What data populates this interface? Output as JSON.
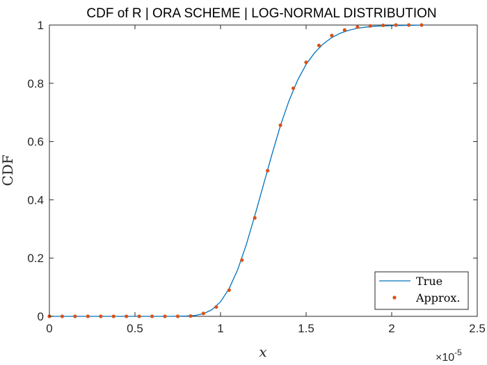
{
  "chart_data": {
    "type": "line",
    "title": "CDF of R | ORA SCHEME | LOG-NORMAL DISTRIBUTION",
    "xlabel": "x",
    "ylabel": "CDF",
    "x_exponent_label": "×10",
    "x_exponent_power": "-5",
    "xlim": [
      0,
      2.5
    ],
    "ylim": [
      0,
      1
    ],
    "x_ticks": [
      0,
      0.5,
      1,
      1.5,
      2,
      2.5
    ],
    "x_tick_labels": [
      "0",
      "0.5",
      "1",
      "1.5",
      "2",
      "2.5"
    ],
    "y_ticks": [
      0,
      0.2,
      0.4,
      0.6,
      0.8,
      1
    ],
    "y_tick_labels": [
      "0",
      "0.2",
      "0.4",
      "0.6",
      "0.8",
      "1"
    ],
    "grid": false,
    "legend": {
      "placement": "bottom-right",
      "entries": [
        "True",
        "Approx."
      ]
    },
    "series": [
      {
        "name": "True",
        "style": "line",
        "color": "#0072BD",
        "x": [
          0,
          0.7,
          0.8,
          0.85,
          0.9,
          0.95,
          1.0,
          1.05,
          1.1,
          1.15,
          1.2,
          1.25,
          1.3,
          1.35,
          1.4,
          1.45,
          1.5,
          1.55,
          1.6,
          1.65,
          1.7,
          1.75,
          1.8,
          1.85,
          1.9,
          2.0,
          2.1,
          2.2
        ],
        "y": [
          0,
          0,
          0.001,
          0.003,
          0.009,
          0.023,
          0.05,
          0.095,
          0.16,
          0.245,
          0.345,
          0.45,
          0.555,
          0.655,
          0.74,
          0.81,
          0.865,
          0.905,
          0.935,
          0.957,
          0.972,
          0.982,
          0.989,
          0.993,
          0.996,
          0.998,
          0.999,
          1
        ]
      },
      {
        "name": "Approx.",
        "style": "scatter",
        "color": "#D95319",
        "x": [
          0,
          0.075,
          0.15,
          0.225,
          0.3,
          0.375,
          0.45,
          0.525,
          0.6,
          0.675,
          0.75,
          0.825,
          0.9,
          0.975,
          1.05,
          1.125,
          1.2,
          1.275,
          1.35,
          1.425,
          1.5,
          1.575,
          1.65,
          1.725,
          1.8,
          1.875,
          1.95,
          2.025,
          2.1,
          2.175
        ],
        "y": [
          0,
          0,
          0,
          0,
          0,
          0,
          0,
          0,
          0,
          0,
          0,
          0.001,
          0.01,
          0.032,
          0.09,
          0.193,
          0.338,
          0.5,
          0.656,
          0.783,
          0.872,
          0.93,
          0.964,
          0.983,
          0.993,
          0.997,
          0.999,
          1,
          1,
          1
        ]
      }
    ]
  }
}
